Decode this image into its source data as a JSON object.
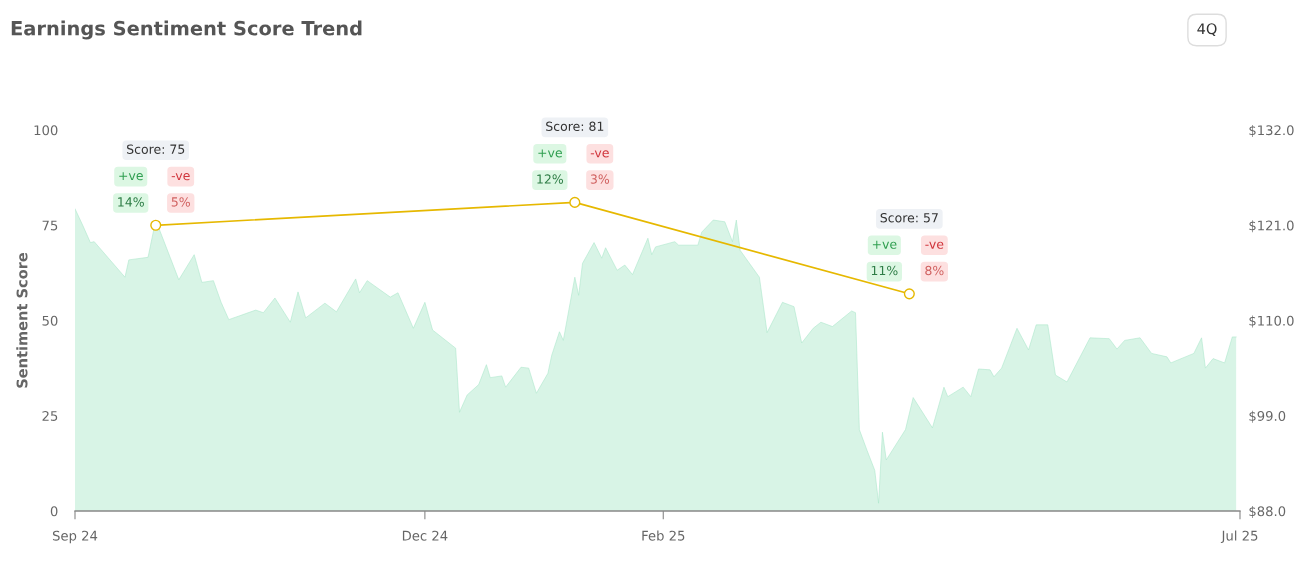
{
  "chart_data": {
    "type": "area",
    "title": "Earnings Sentiment Score Trend",
    "ylabel": "Sentiment Score",
    "series": [
      {
        "axis": "y2",
        "color": "#a8e6c8",
        "x": [
          "2024-09-01",
          "2024-09-03",
          "2024-09-05",
          "2024-09-06",
          "2024-09-14",
          "2024-09-15",
          "2024-09-20",
          "2024-09-22",
          "2024-09-24",
          "2024-09-28",
          "2024-10-02",
          "2024-10-04",
          "2024-10-07",
          "2024-10-09",
          "2024-10-11",
          "2024-10-18",
          "2024-10-20",
          "2024-10-23",
          "2024-10-27",
          "2024-10-29",
          "2024-10-31",
          "2024-11-05",
          "2024-11-08",
          "2024-11-13",
          "2024-11-14",
          "2024-11-16",
          "2024-11-22",
          "2024-11-24",
          "2024-11-28",
          "2024-12-01",
          "2024-12-03",
          "2024-12-09",
          "2024-12-10",
          "2024-12-12",
          "2024-12-15",
          "2024-12-17",
          "2024-12-18",
          "2024-12-21",
          "2024-12-22",
          "2024-12-26",
          "2024-12-28",
          "2024-12-30",
          "2025-01-02",
          "2025-01-03",
          "2025-01-05",
          "2025-01-06",
          "2025-01-09",
          "2025-01-10",
          "2025-01-11",
          "2025-01-14",
          "2025-01-16",
          "2025-01-17",
          "2025-01-20",
          "2025-01-22",
          "2025-01-24",
          "2025-01-28",
          "2025-01-29",
          "2025-01-30",
          "2025-02-04",
          "2025-02-05",
          "2025-02-10",
          "2025-02-11",
          "2025-02-14",
          "2025-02-17",
          "2025-02-19",
          "2025-02-20",
          "2025-02-21",
          "2025-02-26",
          "2025-02-28",
          "2025-03-04",
          "2025-03-07",
          "2025-03-09",
          "2025-03-12",
          "2025-03-14",
          "2025-03-17",
          "2025-03-22",
          "2025-03-23",
          "2025-03-24",
          "2025-03-26",
          "2025-03-28",
          "2025-03-29",
          "2025-03-30",
          "2025-03-31",
          "2025-04-05",
          "2025-04-07",
          "2025-04-12",
          "2025-04-15",
          "2025-04-16",
          "2025-04-20",
          "2025-04-22",
          "2025-04-24",
          "2025-04-27",
          "2025-04-28",
          "2025-04-30",
          "2025-05-04",
          "2025-05-07",
          "2025-05-09",
          "2025-05-12",
          "2025-05-14",
          "2025-05-17",
          "2025-05-23",
          "2025-05-28",
          "2025-05-30",
          "2025-06-01",
          "2025-06-05",
          "2025-06-08",
          "2025-06-12",
          "2025-06-13",
          "2025-06-19",
          "2025-06-21",
          "2025-06-22",
          "2025-06-24",
          "2025-06-27",
          "2025-06-29",
          "2025-06-30"
        ],
        "values": [
          122.9,
          121.0,
          119.0,
          119.1,
          115.0,
          117.0,
          117.3,
          121.6,
          119.3,
          114.7,
          117.6,
          114.4,
          114.6,
          112.1,
          110.1,
          111.2,
          110.9,
          112.6,
          109.8,
          113.3,
          110.3,
          112.0,
          111.0,
          114.8,
          113.2,
          114.6,
          112.7,
          113.2,
          109.1,
          112.1,
          108.9,
          106.8,
          99.4,
          101.4,
          102.6,
          104.9,
          103.4,
          103.6,
          102.3,
          104.6,
          104.5,
          101.6,
          103.9,
          106.0,
          108.7,
          107.7,
          115.0,
          112.9,
          116.6,
          119.0,
          117.2,
          118.4,
          115.8,
          116.4,
          115.3,
          119.5,
          117.6,
          118.5,
          119.1,
          118.7,
          118.7,
          120.2,
          121.6,
          121.4,
          119.1,
          121.6,
          118.1,
          115.0,
          108.6,
          112.1,
          111.6,
          107.4,
          109.1,
          109.8,
          109.3,
          111.1,
          110.9,
          97.4,
          95.0,
          92.7,
          88.9,
          97.1,
          93.9,
          97.4,
          101.1,
          97.6,
          102.3,
          101.2,
          102.3,
          101.2,
          104.4,
          104.3,
          103.5,
          104.5,
          109.1,
          106.6,
          109.5,
          109.5,
          103.7,
          102.9,
          108.0,
          107.9,
          106.7,
          107.7,
          108.0,
          106.2,
          105.8,
          105.1,
          106.2,
          108.0,
          104.5,
          105.6,
          105.1,
          108.1,
          108.1
        ]
      },
      {
        "type": "line",
        "axis": "y",
        "color": "#e6b800",
        "marker": "circle",
        "x": [
          "2024-09-22",
          "2025-01-09",
          "2025-04-06"
        ],
        "values": [
          75,
          81,
          57
        ]
      }
    ],
    "xlim": [
      "2024-09-01",
      "2025-07-01"
    ],
    "xticks": [
      {
        "value": "2024-09-01",
        "label": "Sep 24"
      },
      {
        "value": "2024-12-01",
        "label": "Dec 24"
      },
      {
        "value": "2025-02-01",
        "label": "Feb 25"
      },
      {
        "value": "2025-07-01",
        "label": "Jul 25"
      }
    ],
    "ylim": [
      0,
      100
    ],
    "yticks": [
      0,
      25,
      50,
      75,
      100
    ],
    "y2lim": [
      88,
      132
    ],
    "y2ticks": [
      {
        "value": 88,
        "label": "$88.0"
      },
      {
        "value": 99,
        "label": "$99.0"
      },
      {
        "value": 110,
        "label": "$110.0"
      },
      {
        "value": 121,
        "label": "$121.0"
      },
      {
        "value": 132,
        "label": "$132.0"
      }
    ],
    "grid": false,
    "legend": false,
    "annotations": [
      "Score: 75",
      "+ve",
      "-ve",
      "14%",
      "5%",
      "Score: 81",
      "+ve",
      "-ve",
      "12%",
      "3%",
      "Score: 57",
      "+ve",
      "-ve",
      "11%",
      "8%",
      "4Q"
    ]
  }
}
